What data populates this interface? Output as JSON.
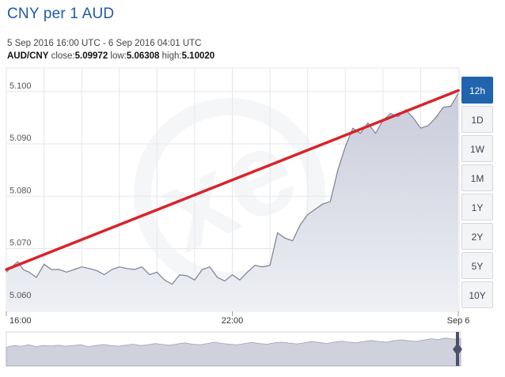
{
  "header": {
    "title": "CNY per 1 AUD",
    "range": "5 Sep 2016 16:00 UTC - 6 Sep 2016 04:01 UTC",
    "pair": "AUD/CNY",
    "close_label": "close:",
    "close_value": "5.09972",
    "low_label": "low:",
    "low_value": "5.06308",
    "high_label": "high:",
    "high_value": "5.10020"
  },
  "range_buttons": [
    {
      "label": "12h",
      "active": true
    },
    {
      "label": "1D",
      "active": false
    },
    {
      "label": "1W",
      "active": false
    },
    {
      "label": "1M",
      "active": false
    },
    {
      "label": "1Y",
      "active": false
    },
    {
      "label": "2Y",
      "active": false
    },
    {
      "label": "5Y",
      "active": false
    },
    {
      "label": "10Y",
      "active": false
    }
  ],
  "watermark": "xe",
  "colors": {
    "area_fill_top": "#c9ccda",
    "area_fill_bottom": "#eef0f5",
    "line": "#7b8092",
    "trend": "#d9232a",
    "grid": "#e4e6ea",
    "active_button": "#1f64ad"
  },
  "chart_data": {
    "type": "area",
    "title": "CNY per 1 AUD",
    "x_tick_labels": [
      "16:00",
      "22:00",
      "Sep 6"
    ],
    "x_tick_hours": [
      0,
      6,
      12
    ],
    "y_ticks": [
      5.06,
      5.07,
      5.08,
      5.09,
      5.1
    ],
    "ylim": [
      5.058,
      5.1045
    ],
    "xlim_hours": [
      0,
      12.02
    ],
    "grid": true,
    "series": [
      {
        "x_hours": [
          0.0,
          0.15,
          0.3,
          0.45,
          0.6,
          0.8,
          1.0,
          1.2,
          1.4,
          1.6,
          1.8,
          2.0,
          2.2,
          2.4,
          2.6,
          2.8,
          3.0,
          3.2,
          3.4,
          3.6,
          3.8,
          4.0,
          4.2,
          4.4,
          4.6,
          4.8,
          5.0,
          5.2,
          5.4,
          5.6,
          5.8,
          6.0,
          6.2,
          6.4,
          6.6,
          6.8,
          7.0,
          7.2,
          7.4,
          7.6,
          7.8,
          8.0,
          8.2,
          8.4,
          8.6,
          8.8,
          9.0,
          9.2,
          9.4,
          9.6,
          9.8,
          10.0,
          10.2,
          10.4,
          10.6,
          10.8,
          11.0,
          11.2,
          11.4,
          11.6,
          11.8,
          12.0
        ],
        "y": [
          5.0655,
          5.0665,
          5.0675,
          5.066,
          5.0655,
          5.0645,
          5.067,
          5.066,
          5.066,
          5.0655,
          5.066,
          5.0665,
          5.0662,
          5.0658,
          5.065,
          5.066,
          5.0665,
          5.0662,
          5.066,
          5.0665,
          5.065,
          5.0655,
          5.064,
          5.0632,
          5.065,
          5.0648,
          5.064,
          5.066,
          5.0665,
          5.0645,
          5.0638,
          5.065,
          5.064,
          5.0655,
          5.0668,
          5.0665,
          5.0668,
          5.073,
          5.072,
          5.0715,
          5.0745,
          5.0765,
          5.0775,
          5.0785,
          5.079,
          5.085,
          5.0895,
          5.093,
          5.092,
          5.094,
          5.092,
          5.0945,
          5.0958,
          5.0952,
          5.0965,
          5.095,
          5.093,
          5.0935,
          5.095,
          5.097,
          5.0972,
          5.0997
        ]
      }
    ],
    "trend_line": {
      "x_hours": [
        0.0,
        12.0
      ],
      "y": [
        5.066,
        5.1002
      ]
    }
  },
  "navigator": {
    "y": [
      0.55,
      0.6,
      0.58,
      0.62,
      0.57,
      0.6,
      0.59,
      0.61,
      0.58,
      0.6,
      0.62,
      0.57,
      0.6,
      0.63,
      0.6,
      0.58,
      0.61,
      0.64,
      0.6,
      0.62,
      0.66,
      0.63,
      0.61,
      0.65,
      0.68,
      0.64,
      0.62,
      0.66,
      0.7,
      0.66,
      0.64,
      0.62,
      0.66,
      0.69,
      0.66,
      0.64,
      0.68,
      0.7,
      0.67,
      0.65,
      0.68,
      0.72,
      0.69,
      0.66,
      0.7,
      0.73,
      0.7,
      0.68,
      0.72,
      0.75,
      0.72,
      0.7,
      0.74,
      0.77,
      0.74,
      0.72,
      0.76,
      0.8,
      0.78,
      0.82,
      0.79,
      0.8
    ]
  }
}
